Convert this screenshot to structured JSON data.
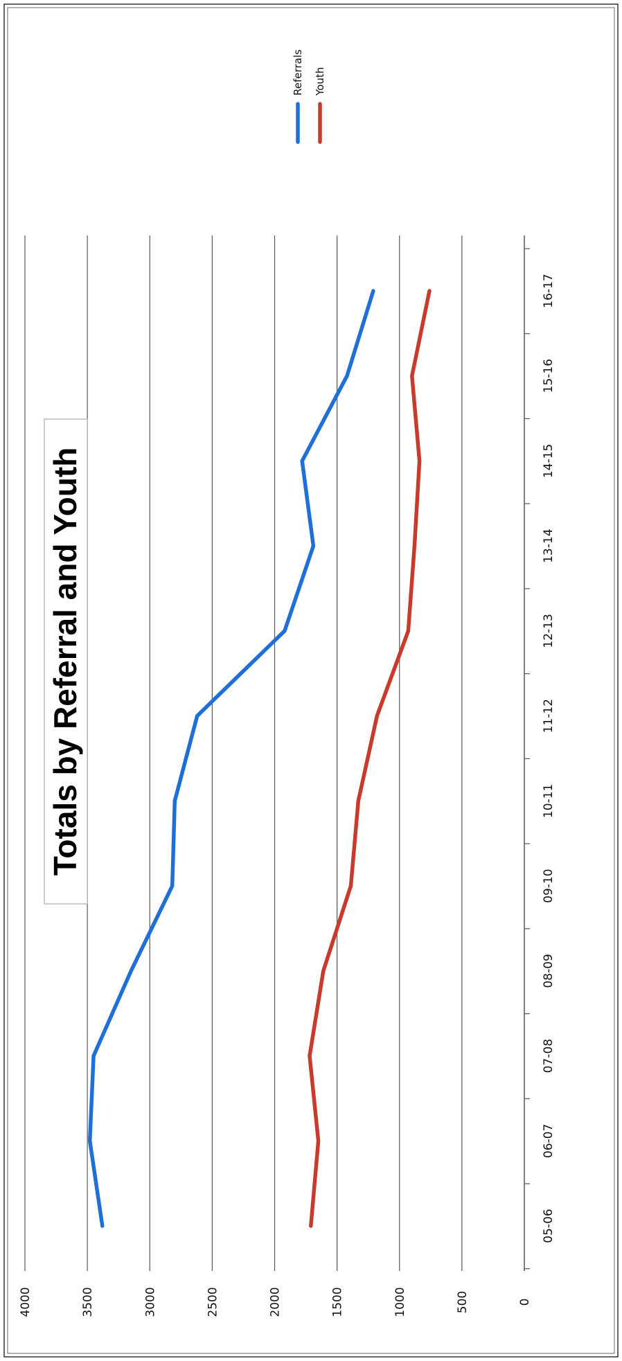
{
  "chart_data": {
    "type": "line",
    "title": "Totals by Referral and Youth",
    "categories": [
      "05-06",
      "06-07",
      "07-08",
      "08-09",
      "09-10",
      "10-11",
      "11-12",
      "12-13",
      "13-14",
      "14-15",
      "15-16",
      "16-17"
    ],
    "series": [
      {
        "name": "Referrals",
        "color": "#1f6fd6",
        "values": [
          3380,
          3480,
          3450,
          3150,
          2820,
          2800,
          2620,
          1920,
          1690,
          1780,
          1420,
          1210
        ]
      },
      {
        "name": "Youth",
        "color": "#c83a2c",
        "values": [
          1710,
          1650,
          1720,
          1610,
          1390,
          1330,
          1180,
          930,
          880,
          840,
          900,
          760
        ]
      }
    ],
    "y_ticks": [
      "0",
      "500",
      "1000",
      "1500",
      "2000",
      "2500",
      "3000",
      "3500",
      "4000"
    ],
    "ylim": [
      0,
      4000
    ],
    "grid": true,
    "legend_position": "top-right",
    "orientation": "rotated 90° clockwise"
  }
}
